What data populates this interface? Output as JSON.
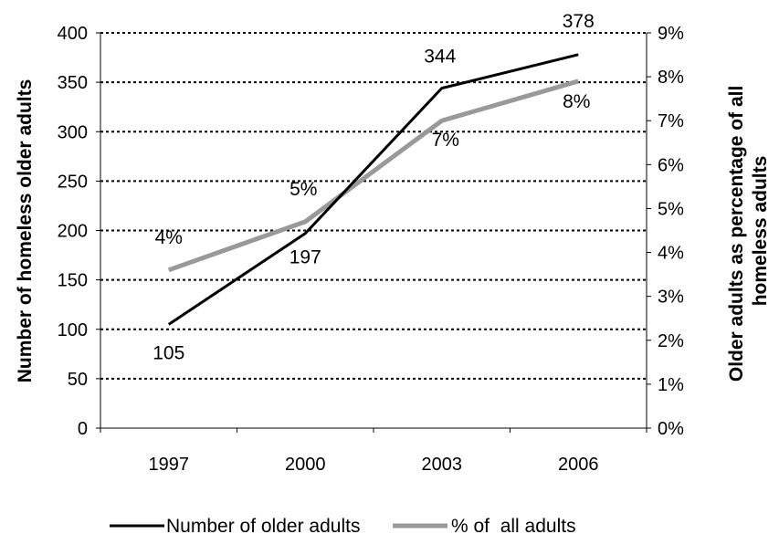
{
  "chart_data": {
    "type": "line",
    "categories": [
      "1997",
      "2000",
      "2003",
      "2006"
    ],
    "series": [
      {
        "name": "Number of older adults",
        "axis": "left",
        "color": "#000000",
        "values": [
          105,
          197,
          344,
          378
        ],
        "labels": [
          "105",
          "197",
          "344",
          "378"
        ]
      },
      {
        "name": "% of  all adults",
        "axis": "right",
        "color": "#999999",
        "values": [
          3.6,
          4.7,
          7.0,
          7.9
        ],
        "labels": [
          "4%",
          "5%",
          "7%",
          "8%"
        ]
      }
    ],
    "ylabel": "Number of homeless older adults",
    "ylabel_right": [
      "Older adults as percentage of all",
      "homeless adults"
    ],
    "ylim": [
      0,
      400
    ],
    "ylim_right": [
      0,
      9
    ],
    "yticks": [
      "0",
      "50",
      "100",
      "150",
      "200",
      "250",
      "300",
      "350",
      "400"
    ],
    "yticks_right": [
      "0%",
      "1%",
      "2%",
      "3%",
      "4%",
      "5%",
      "6%",
      "7%",
      "8%",
      "9%"
    ],
    "grid": "dotted horizontal",
    "legend": "bottom"
  }
}
